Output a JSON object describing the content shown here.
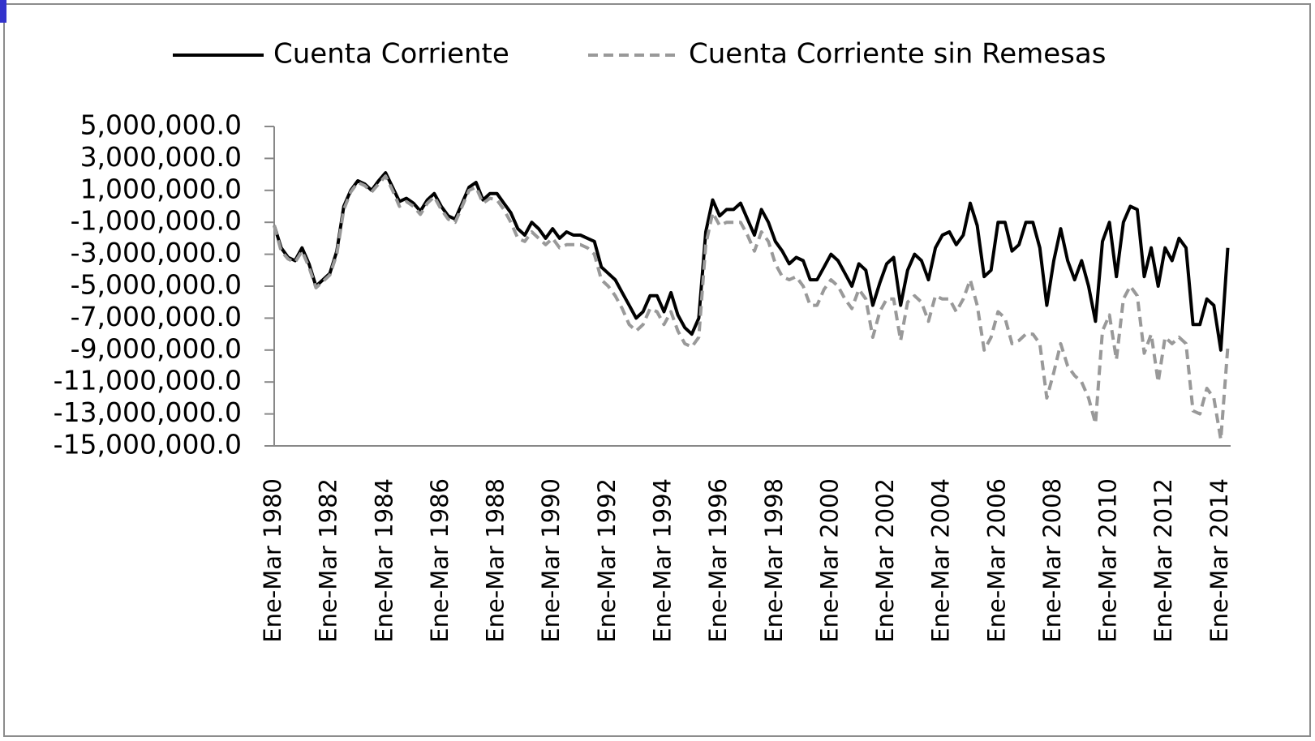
{
  "chart_data": {
    "type": "line",
    "categories": [
      "Ene-Mar 1980",
      null,
      null,
      null,
      null,
      null,
      null,
      null,
      "Ene-Mar 1982",
      null,
      null,
      null,
      null,
      null,
      null,
      null,
      "Ene-Mar 1984",
      null,
      null,
      null,
      null,
      null,
      null,
      null,
      "Ene-Mar 1986",
      null,
      null,
      null,
      null,
      null,
      null,
      null,
      "Ene-Mar 1988",
      null,
      null,
      null,
      null,
      null,
      null,
      null,
      "Ene-Mar 1990",
      null,
      null,
      null,
      null,
      null,
      null,
      null,
      "Ene-Mar 1992",
      null,
      null,
      null,
      null,
      null,
      null,
      null,
      "Ene-Mar 1994",
      null,
      null,
      null,
      null,
      null,
      null,
      null,
      "Ene-Mar 1996",
      null,
      null,
      null,
      null,
      null,
      null,
      null,
      "Ene-Mar 1998",
      null,
      null,
      null,
      null,
      null,
      null,
      null,
      "Ene-Mar 2000",
      null,
      null,
      null,
      null,
      null,
      null,
      null,
      "Ene-Mar 2002",
      null,
      null,
      null,
      null,
      null,
      null,
      null,
      "Ene-Mar 2004",
      null,
      null,
      null,
      null,
      null,
      null,
      null,
      "Ene-Mar 2006",
      null,
      null,
      null,
      null,
      null,
      null,
      null,
      "Ene-Mar 2008",
      null,
      null,
      null,
      null,
      null,
      null,
      null,
      "Ene-Mar 2010",
      null,
      null,
      null,
      null,
      null,
      null,
      null,
      "Ene-Mar 2012",
      null,
      null,
      null,
      null,
      null,
      null,
      null,
      "Ene-Mar 2014",
      null
    ],
    "series": [
      {
        "name": "Cuenta Corriente",
        "color": "#000000",
        "dashed": false,
        "values": [
          -1200000,
          -2600000,
          -3200000,
          -3400000,
          -2600000,
          -3600000,
          -5000000,
          -4600000,
          -4200000,
          -2800000,
          0,
          1000000,
          1600000,
          1400000,
          1000000,
          1600000,
          2100000,
          1200000,
          300000,
          500000,
          200000,
          -300000,
          400000,
          800000,
          0,
          -600000,
          -800000,
          200000,
          1200000,
          1500000,
          400000,
          800000,
          800000,
          200000,
          -400000,
          -1400000,
          -1800000,
          -1000000,
          -1400000,
          -2000000,
          -1400000,
          -2000000,
          -1600000,
          -1800000,
          -1800000,
          -2000000,
          -2200000,
          -3800000,
          -4200000,
          -4600000,
          -5400000,
          -6200000,
          -7000000,
          -6600000,
          -5600000,
          -5600000,
          -6600000,
          -5400000,
          -6800000,
          -7600000,
          -8000000,
          -7000000,
          -1600000,
          400000,
          -600000,
          -200000,
          -200000,
          200000,
          -800000,
          -1800000,
          -200000,
          -1000000,
          -2200000,
          -2800000,
          -3600000,
          -3200000,
          -3400000,
          -4600000,
          -4600000,
          -3800000,
          -3000000,
          -3400000,
          -4200000,
          -5000000,
          -3600000,
          -4000000,
          -6200000,
          -4800000,
          -3600000,
          -3200000,
          -6200000,
          -4000000,
          -3000000,
          -3400000,
          -4600000,
          -2600000,
          -1800000,
          -1600000,
          -2400000,
          -1800000,
          200000,
          -1200000,
          -4400000,
          -4000000,
          -1000000,
          -1000000,
          -2800000,
          -2400000,
          -1000000,
          -1000000,
          -2600000,
          -6200000,
          -3400000,
          -1400000,
          -3400000,
          -4600000,
          -3400000,
          -5000000,
          -7200000,
          -2200000,
          -1000000,
          -4400000,
          -1000000,
          0,
          -200000,
          -4400000,
          -2600000,
          -5000000,
          -2600000,
          -3400000,
          -2000000,
          -2600000,
          -7400000,
          -7400000,
          -5800000,
          -6200000,
          -9000000,
          -2600000
        ]
      },
      {
        "name": "Cuenta Corriente sin Remesas",
        "color": "#999999",
        "dashed": true,
        "values": [
          -1200000,
          -2800000,
          -3300000,
          -3500000,
          -2800000,
          -3800000,
          -5100000,
          -4700000,
          -4300000,
          -3000000,
          -200000,
          900000,
          1500000,
          1300000,
          900000,
          1400000,
          1900000,
          1000000,
          0,
          300000,
          0,
          -500000,
          200000,
          600000,
          -200000,
          -800000,
          -1000000,
          0,
          1000000,
          1200000,
          200000,
          500000,
          400000,
          -200000,
          -1000000,
          -2000000,
          -2200000,
          -1600000,
          -2000000,
          -2400000,
          -2000000,
          -2600000,
          -2400000,
          -2400000,
          -2400000,
          -2600000,
          -3000000,
          -4600000,
          -5000000,
          -5600000,
          -6400000,
          -7400000,
          -7800000,
          -7400000,
          -6400000,
          -6600000,
          -7400000,
          -6600000,
          -7800000,
          -8600000,
          -8800000,
          -8200000,
          -2400000,
          -400000,
          -1200000,
          -1000000,
          -1000000,
          -1000000,
          -1800000,
          -2800000,
          -1600000,
          -2200000,
          -3600000,
          -4400000,
          -4600000,
          -4400000,
          -5000000,
          -6200000,
          -6200000,
          -5200000,
          -4600000,
          -5000000,
          -5800000,
          -6400000,
          -5200000,
          -5800000,
          -8200000,
          -6600000,
          -5800000,
          -5800000,
          -8400000,
          -6000000,
          -5600000,
          -6000000,
          -7200000,
          -5600000,
          -5800000,
          -5800000,
          -6600000,
          -5800000,
          -4600000,
          -6200000,
          -9000000,
          -8200000,
          -6600000,
          -7000000,
          -8600000,
          -8400000,
          -8000000,
          -8000000,
          -8600000,
          -12000000,
          -10400000,
          -8600000,
          -10000000,
          -10600000,
          -11000000,
          -12000000,
          -13600000,
          -7800000,
          -6800000,
          -9600000,
          -5800000,
          -5000000,
          -5600000,
          -9200000,
          -8000000,
          -11000000,
          -8200000,
          -8600000,
          -8200000,
          -8600000,
          -12800000,
          -13000000,
          -11400000,
          -12000000,
          -14600000,
          -8800000
        ]
      }
    ],
    "ylim": [
      -15000000,
      5000000
    ],
    "yticks": [
      {
        "value": -15000000,
        "label": "-15,000,000.0"
      },
      {
        "value": -13000000,
        "label": "-13,000,000.0"
      },
      {
        "value": -11000000,
        "label": "-11,000,000.0"
      },
      {
        "value": -9000000,
        "label": "-9,000,000.0"
      },
      {
        "value": -7000000,
        "label": "-7,000,000.0"
      },
      {
        "value": -5000000,
        "label": "-5,000,000.0"
      },
      {
        "value": -3000000,
        "label": "-3,000,000.0"
      },
      {
        "value": -1000000,
        "label": "-1,000,000.0"
      },
      {
        "value": 1000000,
        "label": "1,000,000.0"
      },
      {
        "value": 3000000,
        "label": "3,000,000.0"
      },
      {
        "value": 5000000,
        "label": "5,000,000.0"
      }
    ],
    "grid": false,
    "legend": "top"
  }
}
